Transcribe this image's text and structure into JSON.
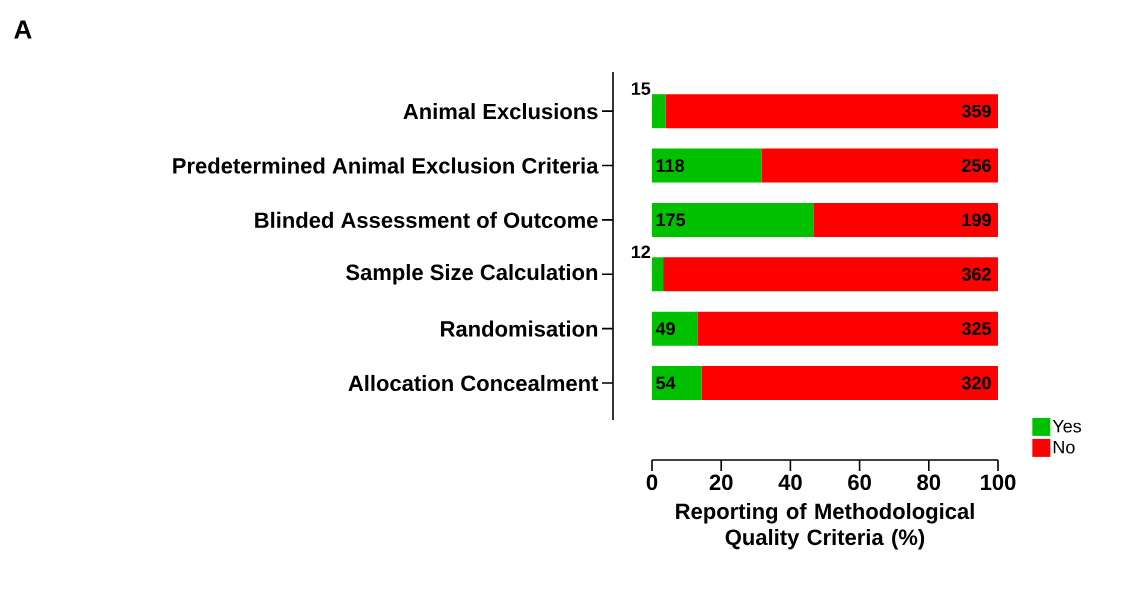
{
  "chart_data": {
    "type": "bar",
    "orientation": "horizontal",
    "stacked": true,
    "categories": [
      "Animal Exclusions",
      "Predetermined Animal Exclusion Criteria",
      "Blinded Assessment of Outcome",
      "Sample Size Calculation",
      "Randomisation",
      "Allocation Concealment"
    ],
    "series": [
      {
        "name": "Yes",
        "color": "#00c000",
        "values": [
          4.0,
          31.6,
          46.8,
          3.2,
          13.1,
          14.4
        ]
      },
      {
        "name": "No",
        "color": "#ff0000",
        "values": [
          96.0,
          68.4,
          53.2,
          96.8,
          86.9,
          85.6
        ]
      }
    ],
    "xlabel": "Reporting of Methodological Quality Criteria (%)",
    "xlim": [
      0,
      100
    ],
    "xticks": [
      0,
      20,
      40,
      60,
      80,
      100
    ],
    "legend": "right",
    "annotations": [
      "A",
      {
        "text": "15",
        "x": 4.0,
        "y": "Animal Exclusions"
      },
      {
        "text": "359",
        "x": 100,
        "y": "Animal Exclusions"
      },
      {
        "text": "118",
        "x": 0,
        "y": "Predetermined Animal Exclusion Criteria"
      },
      {
        "text": "256",
        "x": 100,
        "y": "Predetermined Animal Exclusion Criteria"
      },
      {
        "text": "175",
        "x": 0,
        "y": "Blinded Assessment of Outcome"
      },
      {
        "text": "199",
        "x": 100,
        "y": "Blinded Assessment of Outcome"
      },
      {
        "text": "12",
        "x": 3.2,
        "y": "Sample Size Calculation"
      },
      {
        "text": "362",
        "x": 100,
        "y": "Sample Size Calculation"
      },
      {
        "text": "49",
        "x": 0,
        "y": "Randomisation"
      },
      {
        "text": "325",
        "x": 100,
        "y": "Randomisation"
      },
      {
        "text": "54",
        "x": 0,
        "y": "Allocation Concealment"
      },
      {
        "text": "320",
        "x": 100,
        "y": "Allocation Concealment"
      }
    ]
  }
}
